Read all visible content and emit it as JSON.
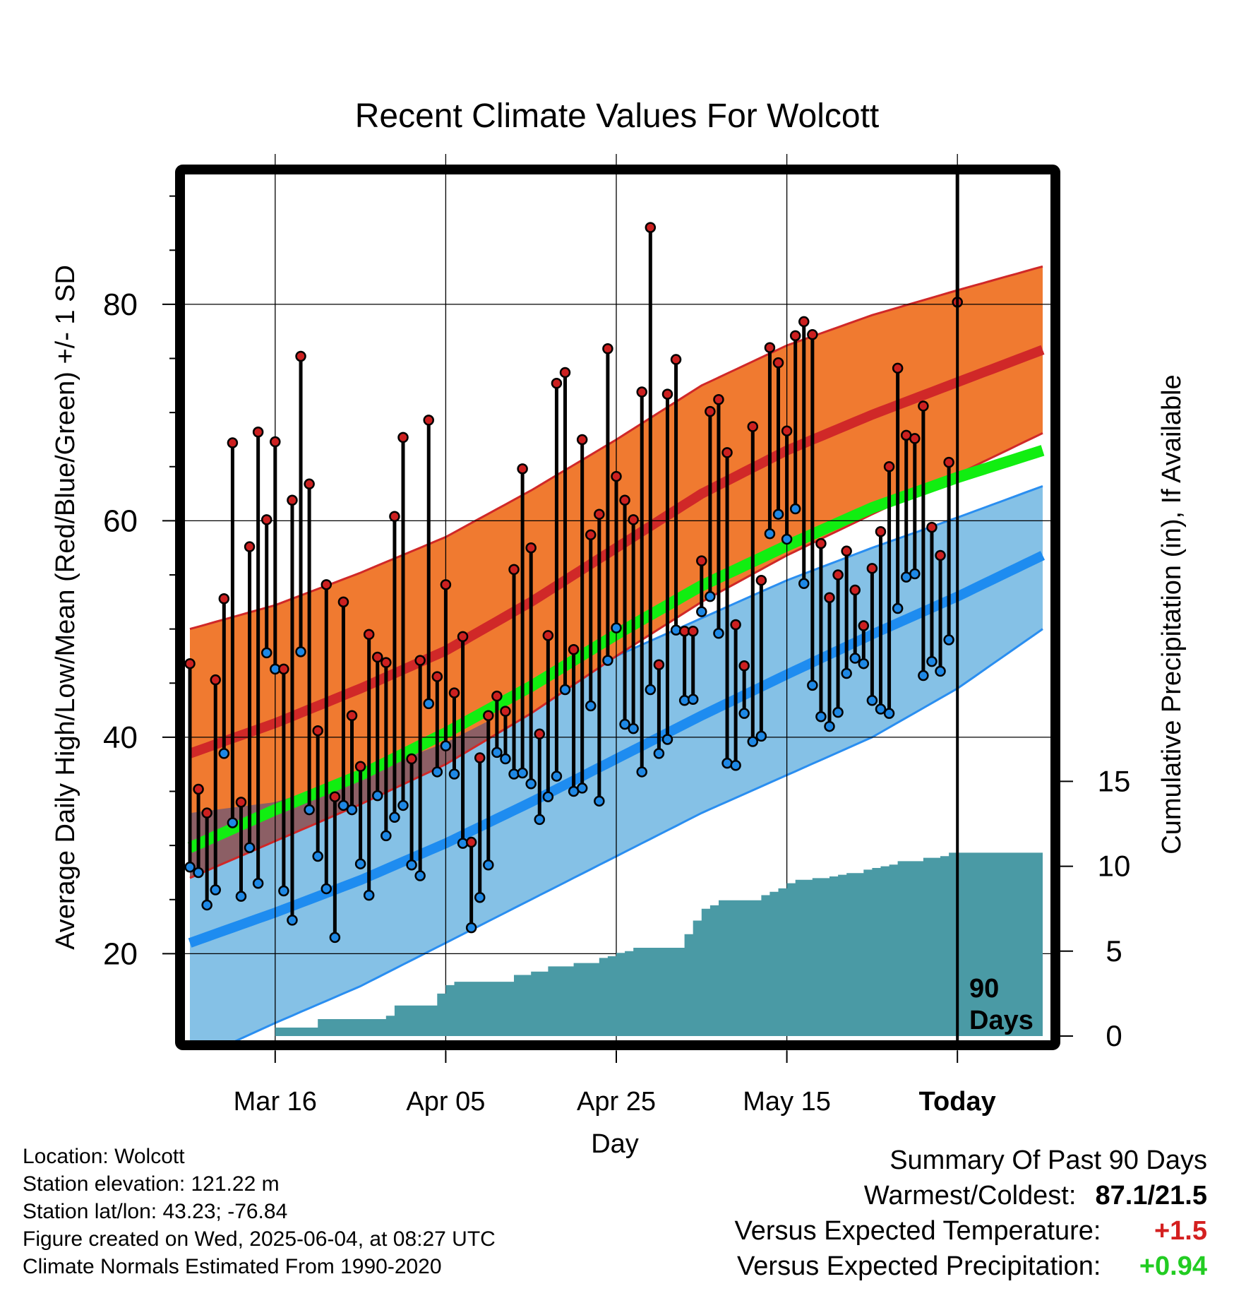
{
  "title": "Recent Climate Values For Wolcott",
  "chart_data": {
    "type": "line",
    "title": "Recent Climate Values For Wolcott",
    "xlabel": "Day",
    "ylabel": "Average Daily High/Low/Mean (Red/Blue/Green) +/- 1 SD",
    "y2label": "Cumulative Precipitation (in), If Available",
    "x_ticks": [
      "Mar 16",
      "Apr 05",
      "Apr 25",
      "May 15",
      "Today"
    ],
    "y_ticks": [
      20,
      40,
      60,
      80
    ],
    "y2_ticks": [
      0,
      5,
      10,
      15
    ],
    "ylim": [
      12,
      92
    ],
    "y2lim": [
      0,
      51
    ],
    "xlim": [
      0,
      100
    ],
    "grid": true,
    "today_marker_label": "90 Days",
    "normals": {
      "x": [
        0,
        10,
        20,
        30,
        40,
        50,
        60,
        70,
        80,
        90,
        100
      ],
      "high_mean": [
        38.5,
        41.3,
        44.5,
        48.0,
        52.5,
        57.5,
        62.5,
        66.5,
        69.8,
        72.8,
        75.8
      ],
      "high_plus_sd": [
        50.0,
        52.2,
        55.2,
        58.5,
        62.8,
        67.5,
        72.5,
        76.2,
        79.0,
        81.3,
        83.5
      ],
      "high_minus_sd": [
        27.0,
        30.4,
        33.8,
        37.5,
        42.2,
        47.5,
        52.5,
        56.8,
        60.6,
        64.3,
        68.1
      ],
      "low_mean": [
        21.0,
        23.8,
        26.8,
        30.2,
        34.0,
        38.0,
        42.0,
        45.8,
        49.5,
        53.0,
        56.8
      ],
      "low_plus_sd": [
        33.0,
        34.0,
        36.5,
        39.5,
        43.5,
        47.5,
        51.0,
        54.5,
        57.5,
        60.3,
        63.2
      ],
      "low_minus_sd": [
        10.0,
        13.6,
        17.0,
        21.0,
        25.0,
        29.0,
        33.0,
        36.5,
        40.0,
        44.5,
        50.0
      ],
      "mean": [
        29.8,
        33.3,
        36.5,
        40.4,
        44.7,
        49.5,
        54.0,
        57.7,
        61.2,
        64.0,
        66.5
      ]
    },
    "series": [
      {
        "name": "Daily High",
        "values": [
          46.8,
          35.2,
          33.0,
          45.3,
          52.8,
          67.2,
          34.0,
          57.6,
          68.2,
          60.1,
          67.3,
          46.3,
          61.9,
          75.2,
          63.4,
          40.6,
          54.1,
          34.5,
          52.5,
          42.0,
          37.3,
          49.5,
          47.4,
          46.9,
          60.4,
          67.7,
          38.0,
          47.1,
          69.3,
          45.6,
          54.1,
          44.1,
          49.3,
          30.3,
          38.1,
          42.0,
          43.8,
          42.4,
          55.5,
          64.8,
          57.5,
          40.3,
          49.4,
          72.7,
          73.7,
          48.1,
          67.5,
          58.7,
          60.6,
          75.9,
          64.1,
          61.9,
          60.1,
          71.9,
          87.1,
          46.7,
          71.7,
          74.9,
          49.8,
          49.8,
          56.3,
          70.1,
          71.2,
          66.3,
          50.4,
          46.6,
          68.7,
          54.5,
          76.0,
          74.6,
          68.3,
          77.1,
          78.4,
          77.2,
          57.9,
          52.9,
          55.0,
          57.2,
          53.6,
          50.3,
          55.6,
          59.0,
          65.0,
          74.1,
          67.9,
          67.6,
          70.6,
          59.4,
          56.8,
          65.4,
          80.2
        ],
        "color": "#cc2020"
      },
      {
        "name": "Daily Low",
        "values": [
          28.0,
          27.5,
          24.5,
          25.9,
          38.5,
          32.1,
          25.3,
          29.8,
          26.5,
          47.8,
          46.3,
          25.8,
          23.1,
          47.9,
          33.3,
          29.0,
          26.0,
          21.5,
          33.7,
          33.3,
          28.3,
          25.4,
          34.6,
          30.9,
          32.6,
          33.7,
          28.2,
          27.2,
          43.1,
          36.8,
          39.2,
          36.6,
          30.2,
          22.4,
          25.2,
          28.2,
          38.6,
          38.0,
          36.6,
          36.7,
          35.7,
          32.4,
          34.5,
          36.4,
          44.4,
          35.0,
          35.3,
          42.9,
          34.1,
          47.1,
          50.1,
          41.2,
          40.8,
          36.8,
          44.4,
          38.5,
          39.8,
          49.9,
          43.4,
          43.5,
          51.6,
          53.0,
          49.6,
          37.6,
          37.4,
          42.2,
          39.6,
          40.1,
          58.8,
          60.6,
          58.3,
          61.1,
          54.2,
          44.8,
          41.9,
          41.0,
          42.3,
          45.9,
          47.3,
          46.8,
          43.4,
          42.6,
          42.2,
          51.9,
          54.8,
          55.1,
          45.7,
          47.0,
          46.1,
          49.0
        ],
        "color": "#1e88e5"
      },
      {
        "name": "Cumulative Precipitation",
        "x": [
          10,
          15,
          23,
          24,
          29,
          30,
          31,
          38,
          40,
          42,
          45,
          48,
          49,
          50,
          51,
          52,
          58,
          59,
          60,
          61,
          62,
          67,
          68,
          69,
          70,
          71,
          73,
          75,
          76,
          77,
          79,
          80,
          81,
          82,
          83,
          86,
          88,
          89,
          90,
          100
        ],
        "values": [
          0.5,
          1.0,
          1.2,
          1.8,
          2.5,
          3.0,
          3.2,
          3.6,
          3.8,
          4.1,
          4.3,
          4.6,
          4.7,
          4.9,
          5.0,
          5.2,
          6.0,
          6.8,
          7.5,
          7.7,
          8.0,
          8.3,
          8.5,
          8.7,
          9.0,
          9.2,
          9.3,
          9.4,
          9.5,
          9.6,
          9.8,
          9.9,
          10.0,
          10.1,
          10.3,
          10.5,
          10.6,
          10.8,
          10.8,
          10.8
        ],
        "color": "#4a9aa5"
      }
    ]
  },
  "footer": {
    "location": "Location: Wolcott",
    "elevation": "Station elevation: 121.22 m",
    "latlon": "Station lat/lon: 43.23; -76.84",
    "created": "Figure created on Wed, 2025-06-04, at 08:27 UTC",
    "normals_note": "Climate Normals Estimated From 1990-2020"
  },
  "summary": {
    "heading": "Summary Of Past 90 Days",
    "warmest_coldest_label": "Warmest/Coldest:",
    "warmest_coldest_value": "87.1/21.5",
    "temp_label": "Versus Expected Temperature:",
    "temp_value": "+1.5",
    "temp_color": "#d42020",
    "precip_label": "Versus Expected Precipitation:",
    "precip_value": "+0.94",
    "precip_color": "#22cc22"
  }
}
